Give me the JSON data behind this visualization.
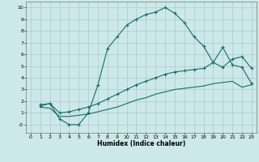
{
  "xlabel": "Humidex (Indice chaleur)",
  "background_color": "#cce8e8",
  "grid_color": "#aacccc",
  "line_color": "#1a6b6b",
  "xlim": [
    -0.5,
    23.5
  ],
  "ylim": [
    -0.7,
    10.5
  ],
  "curve1_x": [
    1,
    2,
    3,
    4,
    5,
    6,
    7,
    8,
    9,
    10,
    11,
    12,
    13,
    14,
    15,
    16,
    17,
    18,
    19,
    20,
    21,
    22,
    23
  ],
  "curve1_y": [
    1.7,
    1.8,
    0.5,
    0.0,
    0.0,
    1.0,
    3.4,
    6.5,
    7.5,
    8.5,
    9.0,
    9.4,
    9.6,
    10.0,
    9.5,
    8.7,
    7.5,
    6.7,
    5.3,
    6.6,
    5.1,
    4.9,
    3.5
  ],
  "curve2_x": [
    1,
    2,
    3,
    4,
    5,
    6,
    7,
    8,
    9,
    10,
    11,
    12,
    13,
    14,
    15,
    16,
    17,
    18,
    19,
    20,
    21,
    22,
    23
  ],
  "curve2_y": [
    1.6,
    1.8,
    1.0,
    1.1,
    1.3,
    1.5,
    1.8,
    2.2,
    2.6,
    3.0,
    3.4,
    3.7,
    4.0,
    4.3,
    4.5,
    4.6,
    4.7,
    4.8,
    5.3,
    4.9,
    5.6,
    5.8,
    4.8
  ],
  "curve3_x": [
    1,
    2,
    3,
    4,
    5,
    6,
    7,
    8,
    9,
    10,
    11,
    12,
    13,
    14,
    15,
    16,
    17,
    18,
    19,
    20,
    21,
    22,
    23
  ],
  "curve3_y": [
    1.5,
    1.4,
    0.7,
    0.7,
    0.8,
    0.9,
    1.1,
    1.3,
    1.5,
    1.8,
    2.1,
    2.3,
    2.6,
    2.8,
    3.0,
    3.1,
    3.2,
    3.3,
    3.5,
    3.6,
    3.7,
    3.2,
    3.4
  ],
  "xticks": [
    0,
    1,
    2,
    3,
    4,
    5,
    6,
    7,
    8,
    9,
    10,
    11,
    12,
    13,
    14,
    15,
    16,
    17,
    18,
    19,
    20,
    21,
    22,
    23
  ],
  "yticks": [
    0,
    1,
    2,
    3,
    4,
    5,
    6,
    7,
    8,
    9,
    10
  ]
}
